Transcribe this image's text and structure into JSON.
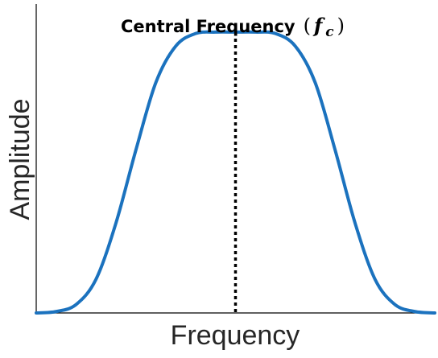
{
  "chart_data": {
    "type": "line",
    "title": "Central Frequency",
    "title_symbol": "f",
    "title_symbol_subscript": "c",
    "title_paren_open": "(",
    "title_paren_close": ")",
    "xlabel": "Frequency",
    "ylabel": "Amplitude",
    "x_ticks_shown": false,
    "y_ticks_shown": false,
    "grid": false,
    "xlim": [
      0,
      1
    ],
    "ylim": [
      0,
      1.1
    ],
    "center_frequency": 0.5,
    "center_line_style": "dotted",
    "curve_shape": "flat-topped bell",
    "series": [
      {
        "color": "#1b72be",
        "x": [
          0.0,
          0.05,
          0.1,
          0.15,
          0.2,
          0.25,
          0.3,
          0.35,
          0.4,
          0.45,
          0.5,
          0.55,
          0.6,
          0.65,
          0.7,
          0.75,
          0.8,
          0.85,
          0.9,
          0.95,
          1.0
        ],
        "y": [
          0.0,
          0.005,
          0.03,
          0.12,
          0.32,
          0.58,
          0.82,
          0.95,
          0.995,
          1.0,
          1.0,
          1.0,
          0.995,
          0.95,
          0.82,
          0.58,
          0.32,
          0.12,
          0.03,
          0.005,
          0.0
        ]
      }
    ]
  }
}
